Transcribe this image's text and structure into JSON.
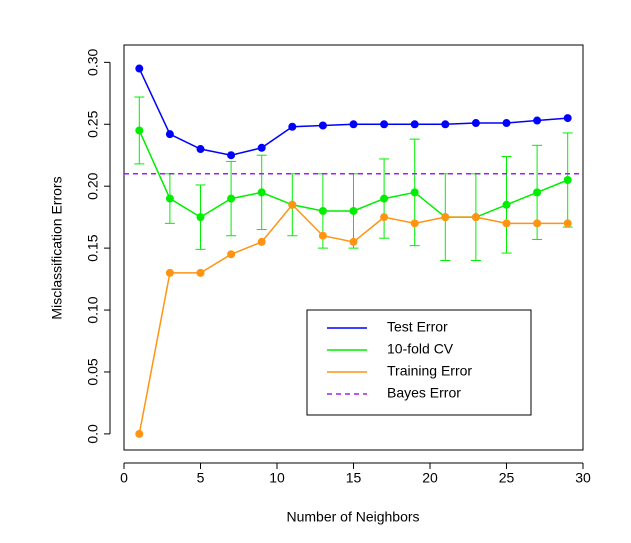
{
  "chart_data": {
    "type": "line",
    "xlabel": "Number of Neighbors",
    "ylabel": "Misclassification Errors",
    "x": [
      1,
      3,
      5,
      7,
      9,
      11,
      13,
      15,
      17,
      19,
      21,
      23,
      25,
      27,
      29
    ],
    "series": [
      {
        "name": "Test Error",
        "color": "#0000ff",
        "values": [
          0.295,
          0.242,
          0.23,
          0.225,
          0.231,
          0.248,
          0.249,
          0.25,
          0.25,
          0.25,
          0.25,
          0.251,
          0.251,
          0.253,
          0.255
        ]
      },
      {
        "name": "10-fold CV",
        "color": "#00ee00",
        "values": [
          0.245,
          0.19,
          0.175,
          0.19,
          0.195,
          0.185,
          0.18,
          0.18,
          0.19,
          0.195,
          0.175,
          0.175,
          0.185,
          0.195,
          0.205
        ],
        "errors": [
          0.027,
          0.02,
          0.026,
          0.03,
          0.03,
          0.025,
          0.03,
          0.03,
          0.032,
          0.043,
          0.035,
          0.035,
          0.039,
          0.038,
          0.038
        ]
      },
      {
        "name": "Training Error",
        "color": "#ff9412",
        "values": [
          0,
          0.13,
          0.13,
          0.145,
          0.155,
          0.185,
          0.16,
          0.155,
          0.175,
          0.17,
          0.175,
          0.175,
          0.17,
          0.17,
          0.17
        ]
      },
      {
        "name": "Bayes Error",
        "color": "#a020f0",
        "hline": 0.21,
        "dashed": true
      }
    ],
    "xlim": [
      0,
      30
    ],
    "xticks": [
      0,
      5,
      10,
      15,
      20,
      25,
      30
    ],
    "ylim": [
      -0.013,
      0.314
    ],
    "yticks": [
      {
        "value": 0,
        "label": "0.0"
      },
      0.05,
      {
        "value": 0.1,
        "label": "0.10"
      },
      0.15,
      {
        "value": 0.2,
        "label": "0.20"
      },
      0.25,
      {
        "value": 0.3,
        "label": "0.30"
      }
    ],
    "legend": "bottom-right"
  }
}
